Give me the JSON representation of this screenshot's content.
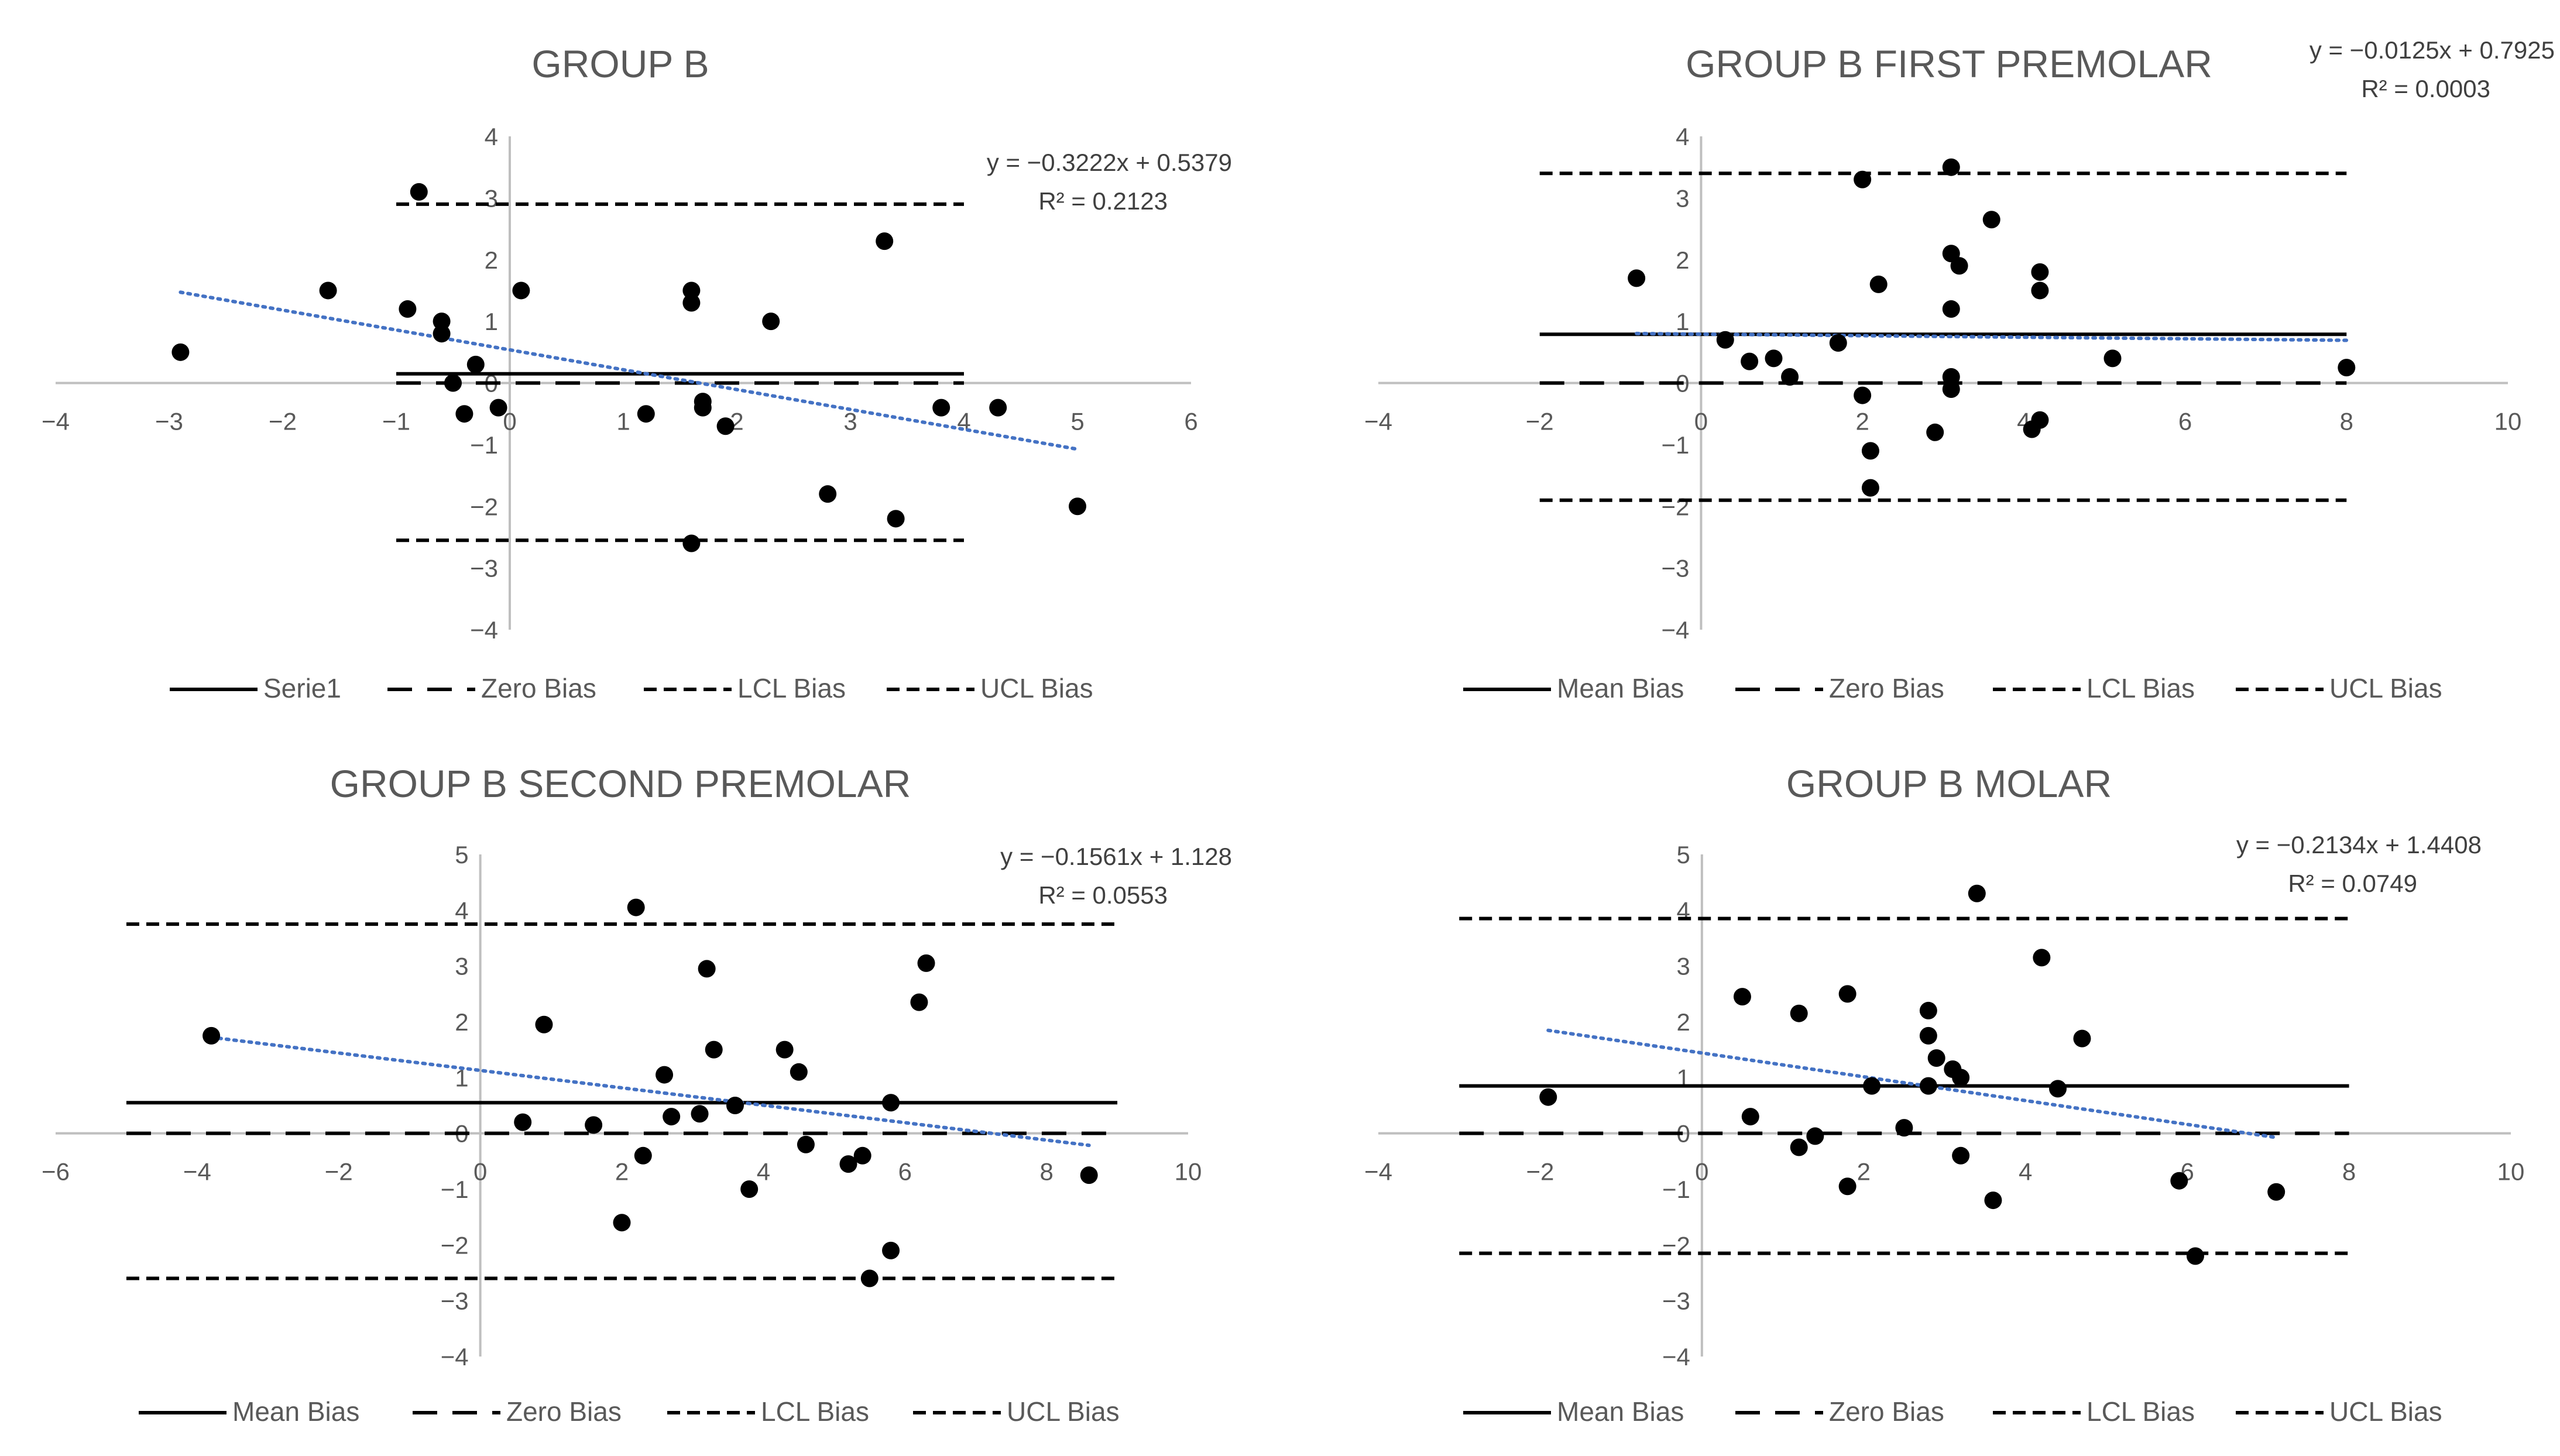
{
  "figure": {
    "name": "Bland-Altman plots, Group B"
  },
  "chart_data": [
    {
      "type": "scatter",
      "title": "GROUP B",
      "xlim": [
        -4,
        6
      ],
      "ylim": [
        -4,
        4
      ],
      "xticks": [
        -4,
        -3,
        -2,
        -1,
        0,
        1,
        2,
        3,
        4,
        5,
        6
      ],
      "yticks": [
        -4,
        -3,
        -2,
        -1,
        0,
        1,
        2,
        3,
        4
      ],
      "tick_labels": {
        "x": [
          "−4",
          "−3",
          "−2",
          "−1",
          "0",
          "1",
          "2",
          "3",
          "4",
          "5",
          "6"
        ],
        "y": [
          "−4",
          "−3",
          "−2",
          "−1",
          "0",
          "1",
          "2",
          "3",
          "4"
        ]
      },
      "points": [
        {
          "x": -2.9,
          "y": 0.5
        },
        {
          "x": -1.6,
          "y": 1.5
        },
        {
          "x": -0.9,
          "y": 1.2
        },
        {
          "x": -0.8,
          "y": 3.1
        },
        {
          "x": -0.6,
          "y": 1.0
        },
        {
          "x": -0.6,
          "y": 0.8
        },
        {
          "x": -0.5,
          "y": 0.0
        },
        {
          "x": -0.4,
          "y": -0.5
        },
        {
          "x": -0.3,
          "y": 0.3
        },
        {
          "x": -0.1,
          "y": -0.4
        },
        {
          "x": 0.1,
          "y": 1.5
        },
        {
          "x": 1.2,
          "y": -0.5
        },
        {
          "x": 1.6,
          "y": 1.5
        },
        {
          "x": 1.6,
          "y": 1.3
        },
        {
          "x": 1.7,
          "y": -0.3
        },
        {
          "x": 1.7,
          "y": -0.4
        },
        {
          "x": 1.9,
          "y": -0.7
        },
        {
          "x": 1.6,
          "y": -2.6
        },
        {
          "x": 2.3,
          "y": 1.0
        },
        {
          "x": 2.8,
          "y": -1.8
        },
        {
          "x": 3.3,
          "y": 2.3
        },
        {
          "x": 3.4,
          "y": -2.2
        },
        {
          "x": 3.8,
          "y": -0.4
        },
        {
          "x": 4.3,
          "y": -0.4
        },
        {
          "x": 5.0,
          "y": -2.0
        }
      ],
      "lines": [
        {
          "name": "Serie1",
          "role": "mean",
          "y": 0.15,
          "x_range": [
            -1,
            4
          ]
        },
        {
          "name": "Zero Bias",
          "role": "zero",
          "y": 0.0,
          "x_range": [
            -1,
            4
          ]
        },
        {
          "name": "LCL Bias",
          "role": "lcl",
          "y": -2.55,
          "x_range": [
            -1,
            4
          ]
        },
        {
          "name": "UCL Bias",
          "role": "ucl",
          "y": 2.9,
          "x_range": [
            -1,
            4
          ]
        }
      ],
      "trendline": {
        "slope": -0.3222,
        "intercept": 0.5379,
        "x_range": [
          -2.9,
          5.0
        ]
      },
      "equation": "y = −0.3222x + 0.5379",
      "r_squared": "R² = 0.2123",
      "legend": [
        "Serie1",
        "Zero Bias",
        "LCL Bias",
        "UCL Bias"
      ]
    },
    {
      "type": "scatter",
      "title": "GROUP B FIRST PREMOLAR",
      "xlim": [
        -4,
        10
      ],
      "ylim": [
        -4,
        4
      ],
      "xticks": [
        -4,
        -2,
        0,
        2,
        4,
        6,
        8,
        10
      ],
      "yticks": [
        -4,
        -3,
        -2,
        -1,
        0,
        1,
        2,
        3,
        4
      ],
      "tick_labels": {
        "x": [
          "−4",
          "−2",
          "0",
          "2",
          "4",
          "6",
          "8",
          "10"
        ],
        "y": [
          "−4",
          "−3",
          "−2",
          "−1",
          "0",
          "1",
          "2",
          "3",
          "4"
        ]
      },
      "points": [
        {
          "x": -0.8,
          "y": 1.7
        },
        {
          "x": 0.3,
          "y": 0.7
        },
        {
          "x": 0.6,
          "y": 0.35
        },
        {
          "x": 0.9,
          "y": 0.4
        },
        {
          "x": 1.1,
          "y": 0.1
        },
        {
          "x": 1.7,
          "y": 0.65
        },
        {
          "x": 2.0,
          "y": 3.3
        },
        {
          "x": 2.0,
          "y": -0.2
        },
        {
          "x": 2.1,
          "y": -1.1
        },
        {
          "x": 2.1,
          "y": -1.7
        },
        {
          "x": 2.2,
          "y": 1.6
        },
        {
          "x": 2.9,
          "y": -0.8
        },
        {
          "x": 3.1,
          "y": 3.5
        },
        {
          "x": 3.1,
          "y": 2.1
        },
        {
          "x": 3.2,
          "y": 1.9
        },
        {
          "x": 3.1,
          "y": 1.2
        },
        {
          "x": 3.1,
          "y": 0.1
        },
        {
          "x": 3.1,
          "y": -0.1
        },
        {
          "x": 3.6,
          "y": 2.65
        },
        {
          "x": 4.1,
          "y": -0.75
        },
        {
          "x": 4.2,
          "y": 1.8
        },
        {
          "x": 4.2,
          "y": 1.5
        },
        {
          "x": 4.2,
          "y": -0.6
        },
        {
          "x": 5.1,
          "y": 0.4
        },
        {
          "x": 8.0,
          "y": 0.25
        }
      ],
      "lines": [
        {
          "name": "Mean Bias",
          "role": "mean",
          "y": 0.79,
          "x_range": [
            -2,
            8
          ]
        },
        {
          "name": "Zero Bias",
          "role": "zero",
          "y": 0.0,
          "x_range": [
            -2,
            8
          ]
        },
        {
          "name": "LCL Bias",
          "role": "lcl",
          "y": -1.9,
          "x_range": [
            -2,
            8
          ]
        },
        {
          "name": "UCL Bias",
          "role": "ucl",
          "y": 3.4,
          "x_range": [
            -2,
            8
          ]
        }
      ],
      "trendline": {
        "slope": -0.0125,
        "intercept": 0.7925,
        "x_range": [
          -0.8,
          8.0
        ]
      },
      "equation": "y = −0.0125x + 0.7925",
      "r_squared": "R² = 0.0003",
      "legend": [
        "Mean Bias",
        "Zero Bias",
        "LCL Bias",
        "UCL Bias"
      ]
    },
    {
      "type": "scatter",
      "title": "GROUP B SECOND PREMOLAR",
      "xlim": [
        -6,
        10
      ],
      "ylim": [
        -4,
        5
      ],
      "xticks": [
        -6,
        -4,
        -2,
        0,
        2,
        4,
        6,
        8,
        10
      ],
      "yticks": [
        -4,
        -3,
        -2,
        -1,
        0,
        1,
        2,
        3,
        4,
        5
      ],
      "tick_labels": {
        "x": [
          "−6",
          "−4",
          "−2",
          "0",
          "2",
          "4",
          "6",
          "8",
          "10"
        ],
        "y": [
          "−4",
          "−3",
          "−2",
          "−1",
          "0",
          "1",
          "2",
          "3",
          "4",
          "5"
        ]
      },
      "points": [
        {
          "x": -3.8,
          "y": 1.75
        },
        {
          "x": 0.6,
          "y": 0.2
        },
        {
          "x": 0.9,
          "y": 1.95
        },
        {
          "x": 1.6,
          "y": 0.15
        },
        {
          "x": 2.0,
          "y": -1.6
        },
        {
          "x": 2.2,
          "y": 4.05
        },
        {
          "x": 2.3,
          "y": -0.4
        },
        {
          "x": 2.6,
          "y": 1.05
        },
        {
          "x": 2.7,
          "y": 0.3
        },
        {
          "x": 3.1,
          "y": 0.35
        },
        {
          "x": 3.2,
          "y": 2.95
        },
        {
          "x": 3.3,
          "y": 1.5
        },
        {
          "x": 3.6,
          "y": 0.5
        },
        {
          "x": 3.8,
          "y": -1.0
        },
        {
          "x": 4.3,
          "y": 1.5
        },
        {
          "x": 4.5,
          "y": 1.1
        },
        {
          "x": 4.6,
          "y": -0.2
        },
        {
          "x": 5.2,
          "y": -0.55
        },
        {
          "x": 5.4,
          "y": -0.4
        },
        {
          "x": 5.5,
          "y": -2.6
        },
        {
          "x": 5.8,
          "y": -2.1
        },
        {
          "x": 5.8,
          "y": 0.55
        },
        {
          "x": 6.2,
          "y": 2.35
        },
        {
          "x": 6.3,
          "y": 3.05
        },
        {
          "x": 8.6,
          "y": -0.75
        }
      ],
      "lines": [
        {
          "name": "Mean Bias",
          "role": "mean",
          "y": 0.55,
          "x_range": [
            -5,
            9
          ]
        },
        {
          "name": "Zero Bias",
          "role": "zero",
          "y": 0.0,
          "x_range": [
            -5,
            9
          ]
        },
        {
          "name": "LCL Bias",
          "role": "lcl",
          "y": -2.6,
          "x_range": [
            -5,
            9
          ]
        },
        {
          "name": "UCL Bias",
          "role": "ucl",
          "y": 3.75,
          "x_range": [
            -5,
            9
          ]
        }
      ],
      "trendline": {
        "slope": -0.1561,
        "intercept": 1.128,
        "x_range": [
          -3.8,
          8.6
        ]
      },
      "equation": "y = −0.1561x + 1.128",
      "r_squared": "R² = 0.0553",
      "legend": [
        "Mean Bias",
        "Zero Bias",
        "LCL Bias",
        "UCL Bias"
      ]
    },
    {
      "type": "scatter",
      "title": "GROUP B MOLAR",
      "xlim": [
        -4,
        10
      ],
      "ylim": [
        -4,
        5
      ],
      "xticks": [
        -4,
        -2,
        0,
        2,
        4,
        6,
        8,
        10
      ],
      "yticks": [
        -4,
        -3,
        -2,
        -1,
        0,
        1,
        2,
        3,
        4,
        5
      ],
      "tick_labels": {
        "x": [
          "−4",
          "−2",
          "0",
          "2",
          "4",
          "6",
          "8",
          "10"
        ],
        "y": [
          "−4",
          "−3",
          "−2",
          "−1",
          "0",
          "1",
          "2",
          "3",
          "4",
          "5"
        ]
      },
      "points": [
        {
          "x": -1.9,
          "y": 0.65
        },
        {
          "x": 0.5,
          "y": 2.45
        },
        {
          "x": 0.6,
          "y": 0.3
        },
        {
          "x": 1.2,
          "y": 2.15
        },
        {
          "x": 1.2,
          "y": -0.25
        },
        {
          "x": 1.4,
          "y": -0.05
        },
        {
          "x": 1.8,
          "y": 2.5
        },
        {
          "x": 1.8,
          "y": -0.95
        },
        {
          "x": 2.1,
          "y": 0.85
        },
        {
          "x": 2.5,
          "y": 0.1
        },
        {
          "x": 2.8,
          "y": 2.2
        },
        {
          "x": 2.8,
          "y": 0.85
        },
        {
          "x": 2.8,
          "y": 1.75
        },
        {
          "x": 2.9,
          "y": 1.35
        },
        {
          "x": 3.1,
          "y": 1.15
        },
        {
          "x": 3.2,
          "y": 1.0
        },
        {
          "x": 3.2,
          "y": -0.4
        },
        {
          "x": 3.4,
          "y": 4.3
        },
        {
          "x": 3.6,
          "y": -1.2
        },
        {
          "x": 4.2,
          "y": 3.15
        },
        {
          "x": 4.4,
          "y": 0.8
        },
        {
          "x": 4.7,
          "y": 1.7
        },
        {
          "x": 5.9,
          "y": -0.85
        },
        {
          "x": 6.1,
          "y": -2.2
        },
        {
          "x": 7.1,
          "y": -1.05
        }
      ],
      "lines": [
        {
          "name": "Mean Bias",
          "role": "mean",
          "y": 0.85,
          "x_range": [
            -3,
            8
          ]
        },
        {
          "name": "Zero Bias",
          "role": "zero",
          "y": 0.0,
          "x_range": [
            -3,
            8
          ]
        },
        {
          "name": "LCL Bias",
          "role": "lcl",
          "y": -2.15,
          "x_range": [
            -3,
            8
          ]
        },
        {
          "name": "UCL Bias",
          "role": "ucl",
          "y": 3.85,
          "x_range": [
            -3,
            8
          ]
        }
      ],
      "trendline": {
        "slope": -0.2134,
        "intercept": 1.4408,
        "x_range": [
          -1.9,
          7.1
        ]
      },
      "equation": "y = −0.2134x + 1.4408",
      "r_squared": "R² = 0.0749",
      "legend": [
        "Mean Bias",
        "Zero Bias",
        "LCL Bias",
        "UCL Bias"
      ]
    }
  ],
  "colors": {
    "axis": "#bfbfbf",
    "text": "#595959",
    "point": "#000000",
    "line": "#000000",
    "trendline": "#4472c4"
  }
}
